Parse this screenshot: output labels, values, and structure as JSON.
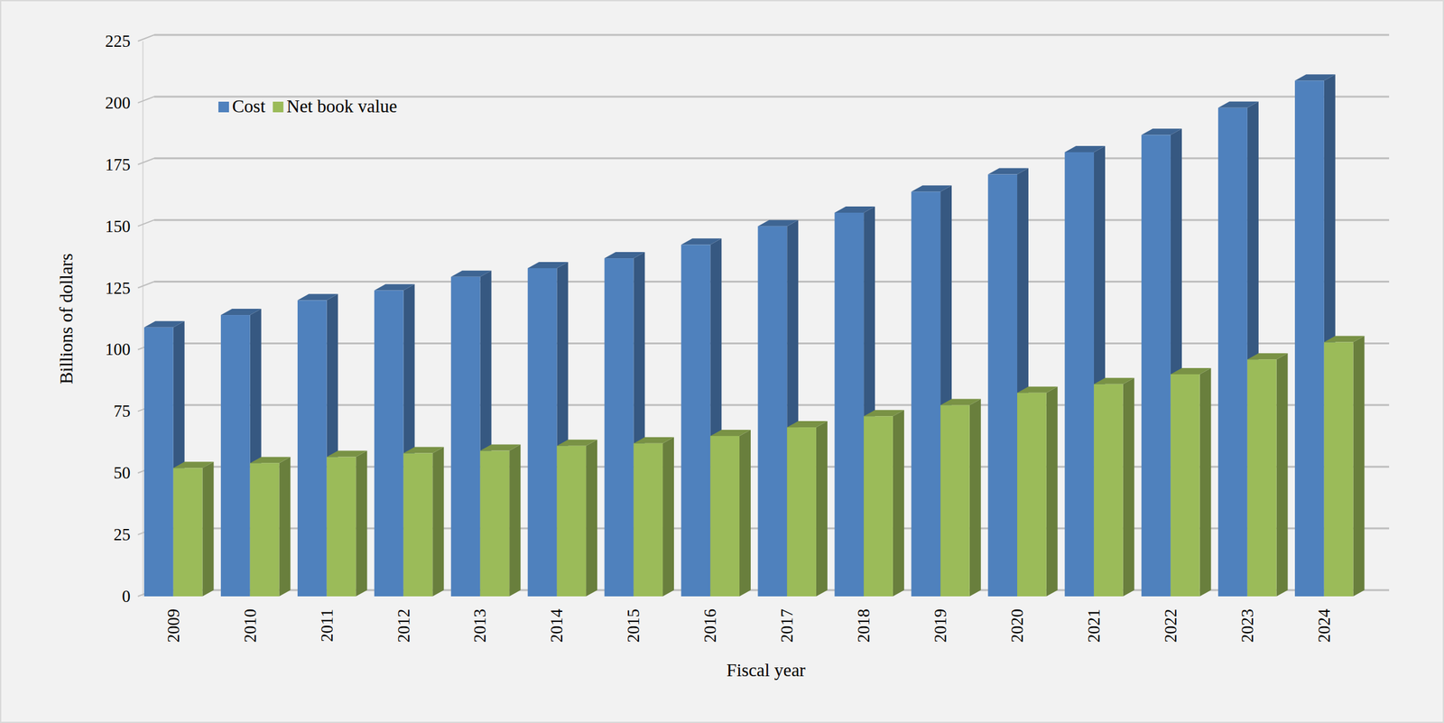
{
  "chart_data": {
    "type": "bar",
    "x_label": "Fiscal year",
    "y_label": "Billions of dollars",
    "categories": [
      "2009",
      "2010",
      "2011",
      "2012",
      "2013",
      "2014",
      "2015",
      "2016",
      "2017",
      "2018",
      "2019",
      "2020",
      "2021",
      "2022",
      "2023",
      "2024"
    ],
    "series": [
      {
        "name": "Cost",
        "color": "#4f81bd",
        "values": [
          109,
          114,
          120,
          124,
          129.5,
          133,
          137,
          142.5,
          150,
          155.5,
          164,
          171,
          180,
          187,
          198,
          209
        ]
      },
      {
        "name": "Net book value",
        "color": "#9bbb59",
        "values": [
          52,
          54,
          56.5,
          58,
          59,
          61,
          62,
          65,
          68.5,
          73,
          77.5,
          82.5,
          86,
          90,
          96,
          103
        ]
      }
    ],
    "ylim": [
      0,
      225
    ],
    "yticks": [
      0,
      25,
      50,
      75,
      100,
      125,
      150,
      175,
      200,
      225
    ],
    "grid": true,
    "legend": "top-left"
  }
}
